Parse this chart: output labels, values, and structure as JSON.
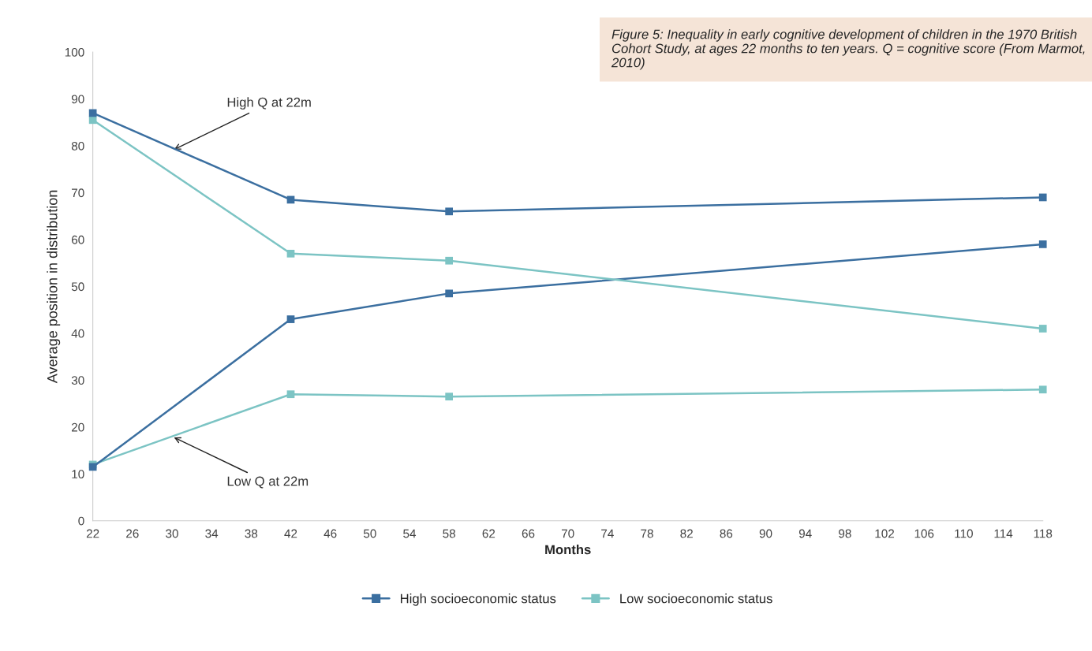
{
  "chart_data": {
    "type": "line",
    "title": "Figure 5: Inequality in early cognitive development of children in the 1970 British Cohort Study, at ages 22 months to ten years. Q = cognitive score (From Marmot, 2010)",
    "xlabel": "Months",
    "ylabel": "Average position in distribution",
    "x": [
      22,
      42,
      58,
      118
    ],
    "series": [
      {
        "name": "High socioeconomic status",
        "color": "#3b6fa0",
        "values": [
          87,
          68.5,
          66,
          69
        ]
      },
      {
        "name": "Low socioeconomic status",
        "color": "#7cc4c4",
        "values": [
          85.5,
          57,
          55.5,
          41
        ]
      },
      {
        "color": "#3b6fa0",
        "values": [
          11.5,
          43,
          48.5,
          59
        ]
      },
      {
        "color": "#7cc4c4",
        "values": [
          12,
          27,
          26.5,
          28
        ]
      }
    ],
    "annotations": [
      {
        "text": "High Q at 22m",
        "x": 30,
        "y": 79
      },
      {
        "text": "Low Q at 22m",
        "x": 30,
        "y": 18
      }
    ],
    "xlim": [
      22,
      118
    ],
    "xticks": [
      22,
      26,
      30,
      34,
      38,
      42,
      46,
      50,
      54,
      58,
      62,
      66,
      70,
      74,
      78,
      82,
      86,
      90,
      94,
      98,
      102,
      106,
      110,
      114,
      118
    ],
    "ylim": [
      0,
      100
    ],
    "yticks": [
      0,
      10,
      20,
      30,
      40,
      50,
      60,
      70,
      80,
      90,
      100
    ],
    "grid": false,
    "legend": "bottom",
    "marker": "square",
    "line_style": "solid"
  }
}
